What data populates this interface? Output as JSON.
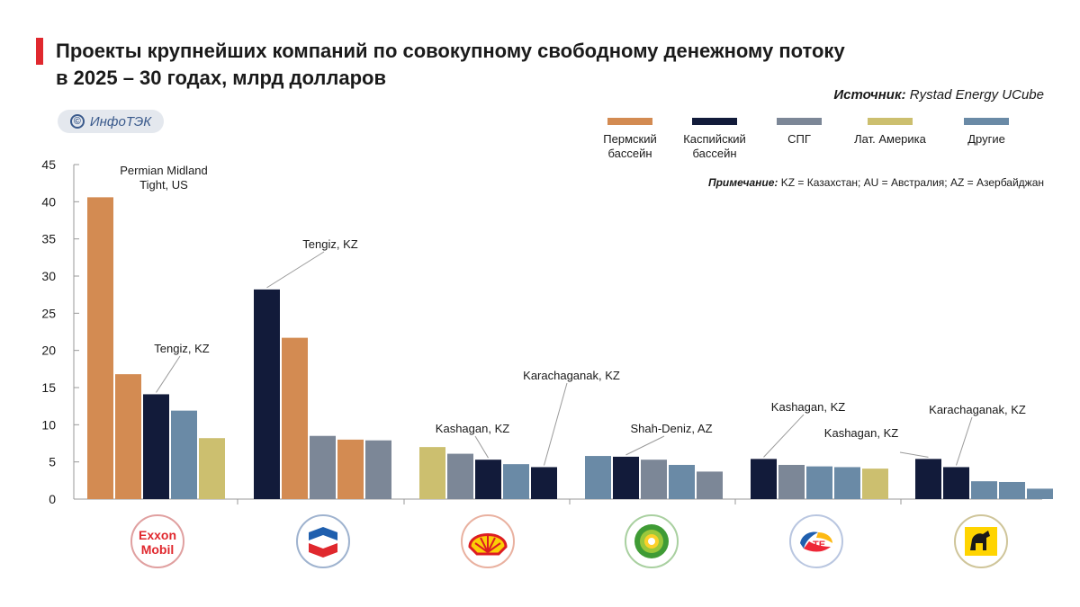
{
  "header": {
    "title_line1": "Проекты крупнейших компаний по совокупному свободному денежному потоку",
    "title_line2": "в 2025 – 30 годах, млрд долларов",
    "source_label": "Источник:",
    "source_value": "Rystad Energy UCube",
    "brand": "ИнфоТЭК",
    "brand_symbol": "©",
    "note_label": "Примечание:",
    "note_value": "KZ = Казахстан; AU = Австралия; AZ = Азербайджан"
  },
  "colors": {
    "permian": "#d38b52",
    "caspian": "#121b3a",
    "lng": "#7c8797",
    "latam": "#ccbf6f",
    "other": "#6a8aa6",
    "accent": "#e0282e"
  },
  "legend": [
    {
      "key": "permian",
      "label": "Пермский\nбассейн"
    },
    {
      "key": "caspian",
      "label": "Каспийский\nбассейн"
    },
    {
      "key": "lng",
      "label": "СПГ"
    },
    {
      "key": "latam",
      "label": "Лат. Америка"
    },
    {
      "key": "other",
      "label": "Другие"
    }
  ],
  "chart_data": {
    "type": "bar",
    "title": "Проекты крупнейших компаний по совокупному свободному денежному потоку в 2025 – 30 годах, млрд долларов",
    "ylim": [
      0,
      45
    ],
    "yticks": [
      0,
      5,
      10,
      15,
      20,
      25,
      30,
      35,
      40,
      45
    ],
    "groups": [
      {
        "company": "ExxonMobil",
        "bars": [
          {
            "category": "permian",
            "value": 40.6
          },
          {
            "category": "permian",
            "value": 16.8
          },
          {
            "category": "caspian",
            "value": 14.1
          },
          {
            "category": "other",
            "value": 11.9
          },
          {
            "category": "latam",
            "value": 8.2
          }
        ]
      },
      {
        "company": "Chevron",
        "bars": [
          {
            "category": "caspian",
            "value": 28.2
          },
          {
            "category": "permian",
            "value": 21.7
          },
          {
            "category": "lng",
            "value": 8.5
          },
          {
            "category": "permian",
            "value": 8.0
          },
          {
            "category": "lng",
            "value": 7.9
          }
        ]
      },
      {
        "company": "Shell",
        "bars": [
          {
            "category": "latam",
            "value": 7.0
          },
          {
            "category": "lng",
            "value": 6.1
          },
          {
            "category": "caspian",
            "value": 5.3
          },
          {
            "category": "other",
            "value": 4.7
          },
          {
            "category": "caspian",
            "value": 4.3
          }
        ]
      },
      {
        "company": "bp",
        "bars": [
          {
            "category": "other",
            "value": 5.8
          },
          {
            "category": "caspian",
            "value": 5.7
          },
          {
            "category": "lng",
            "value": 5.3
          },
          {
            "category": "other",
            "value": 4.6
          },
          {
            "category": "lng",
            "value": 3.7
          }
        ]
      },
      {
        "company": "TotalEnergies",
        "bars": [
          {
            "category": "caspian",
            "value": 5.4
          },
          {
            "category": "lng",
            "value": 4.6
          },
          {
            "category": "other",
            "value": 4.4
          },
          {
            "category": "other",
            "value": 4.3
          },
          {
            "category": "latam",
            "value": 4.1
          }
        ]
      },
      {
        "company": "Eni",
        "bars": [
          {
            "category": "caspian",
            "value": 5.4
          },
          {
            "category": "caspian",
            "value": 4.3
          },
          {
            "category": "other",
            "value": 2.4
          },
          {
            "category": "other",
            "value": 2.3
          },
          {
            "category": "other",
            "value": 1.4
          }
        ]
      }
    ],
    "annotations": [
      {
        "text": "Permian Midland\nTight, US",
        "group": 0,
        "bar": 0
      },
      {
        "text": "Tengiz, KZ",
        "group": 0,
        "bar": 2
      },
      {
        "text": "Tengiz, KZ",
        "group": 1,
        "bar": 0
      },
      {
        "text": "Kashagan, KZ",
        "group": 2,
        "bar": 2
      },
      {
        "text": "Karachaganak, KZ",
        "group": 2,
        "bar": 4
      },
      {
        "text": "Shah-Deniz, AZ",
        "group": 3,
        "bar": 1
      },
      {
        "text": "Kashagan, KZ",
        "group": 4,
        "bar": 0
      },
      {
        "text": "Kashagan, KZ",
        "group": 5,
        "bar": 0
      },
      {
        "text": "Karachaganak, KZ",
        "group": 5,
        "bar": 1
      }
    ]
  },
  "logos": [
    {
      "company": "ExxonMobil",
      "line1": "E",
      "mid": "xx",
      "line1b": "on",
      "line2": "Mobil"
    },
    {
      "company": "Chevron",
      "icon": "chevron-logo-icon"
    },
    {
      "company": "Shell",
      "icon": "shell-logo-icon"
    },
    {
      "company": "bp",
      "icon": "bp-helios-icon"
    },
    {
      "company": "TotalEnergies",
      "icon": "totalenergies-logo-icon"
    },
    {
      "company": "Eni",
      "icon": "eni-dog-icon"
    }
  ]
}
